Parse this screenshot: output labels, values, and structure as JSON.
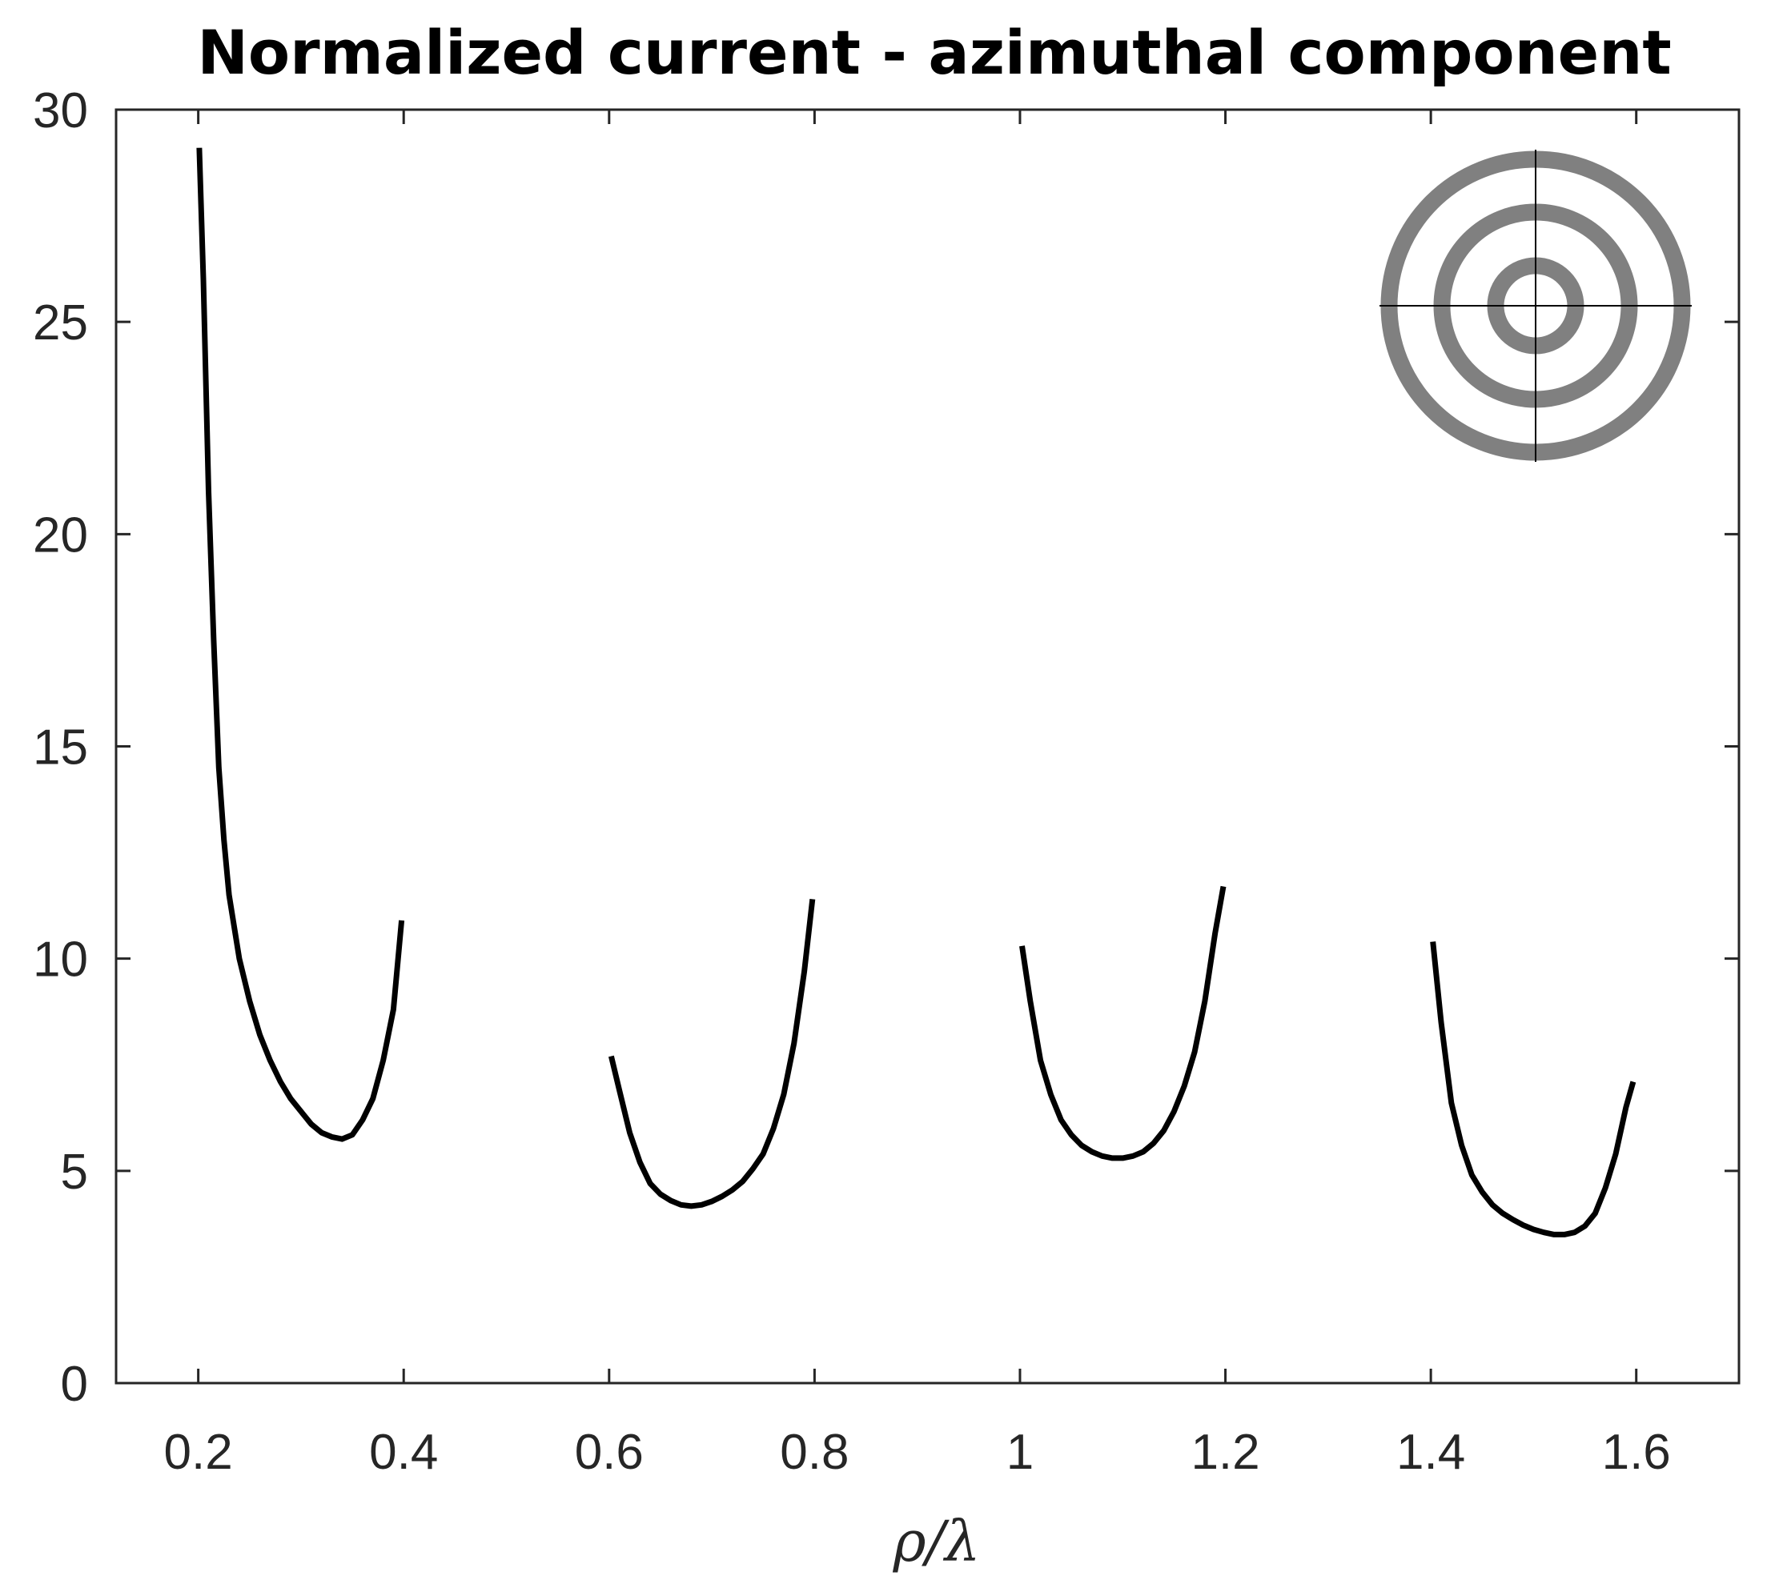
{
  "chart_data": {
    "type": "line",
    "title": "Normalized current - azimuthal component",
    "xlabel": "ρ/λ",
    "ylabel": "",
    "xlim": [
      0.12,
      1.7
    ],
    "ylim": [
      0,
      30
    ],
    "xticks": [
      0.2,
      0.4,
      0.6,
      0.8,
      1.0,
      1.2,
      1.4,
      1.6
    ],
    "xtick_labels": [
      "0.2",
      "0.4",
      "0.6",
      "0.8",
      "1",
      "1.2",
      "1.4",
      "1.6"
    ],
    "yticks": [
      0,
      5,
      10,
      15,
      20,
      25,
      30
    ],
    "ytick_labels": [
      "0",
      "5",
      "10",
      "15",
      "20",
      "25",
      "30"
    ],
    "grid": false,
    "line_color": "#000000",
    "inset_color": "#808080",
    "inset": "concentric-rings-icon",
    "series": [
      {
        "x": [
          0.201,
          0.205,
          0.21,
          0.215,
          0.22,
          0.225,
          0.23,
          0.24,
          0.25,
          0.26,
          0.27,
          0.28,
          0.29,
          0.3,
          0.31,
          0.32,
          0.33,
          0.34,
          0.35,
          0.36,
          0.37,
          0.38,
          0.39,
          0.398
        ],
        "y": [
          29.1,
          26.0,
          21.0,
          17.5,
          14.5,
          12.8,
          11.5,
          10.0,
          9.0,
          8.2,
          7.6,
          7.1,
          6.7,
          6.4,
          6.1,
          5.9,
          5.8,
          5.75,
          5.85,
          6.2,
          6.7,
          7.6,
          8.8,
          10.9
        ]
      },
      {
        "x": [
          0.602,
          0.61,
          0.62,
          0.63,
          0.64,
          0.65,
          0.66,
          0.67,
          0.68,
          0.69,
          0.7,
          0.71,
          0.72,
          0.73,
          0.74,
          0.75,
          0.76,
          0.77,
          0.78,
          0.79,
          0.798
        ],
        "y": [
          7.7,
          6.9,
          5.9,
          5.2,
          4.7,
          4.45,
          4.3,
          4.2,
          4.17,
          4.2,
          4.28,
          4.4,
          4.55,
          4.75,
          5.05,
          5.4,
          6.0,
          6.8,
          8.0,
          9.7,
          11.4
        ]
      },
      {
        "x": [
          1.002,
          1.01,
          1.02,
          1.03,
          1.04,
          1.05,
          1.06,
          1.07,
          1.08,
          1.09,
          1.1,
          1.11,
          1.12,
          1.13,
          1.14,
          1.15,
          1.16,
          1.17,
          1.18,
          1.19,
          1.198
        ],
        "y": [
          10.3,
          9.0,
          7.6,
          6.8,
          6.2,
          5.85,
          5.6,
          5.45,
          5.35,
          5.3,
          5.3,
          5.35,
          5.45,
          5.65,
          5.95,
          6.4,
          7.0,
          7.8,
          9.0,
          10.6,
          11.7
        ]
      },
      {
        "x": [
          1.402,
          1.41,
          1.42,
          1.43,
          1.44,
          1.45,
          1.46,
          1.47,
          1.48,
          1.49,
          1.5,
          1.51,
          1.52,
          1.53,
          1.54,
          1.55,
          1.56,
          1.57,
          1.58,
          1.59,
          1.597
        ],
        "y": [
          10.4,
          8.5,
          6.6,
          5.6,
          4.9,
          4.5,
          4.2,
          4.0,
          3.85,
          3.72,
          3.62,
          3.55,
          3.5,
          3.5,
          3.55,
          3.7,
          4.0,
          4.6,
          5.4,
          6.5,
          7.1
        ]
      }
    ]
  }
}
